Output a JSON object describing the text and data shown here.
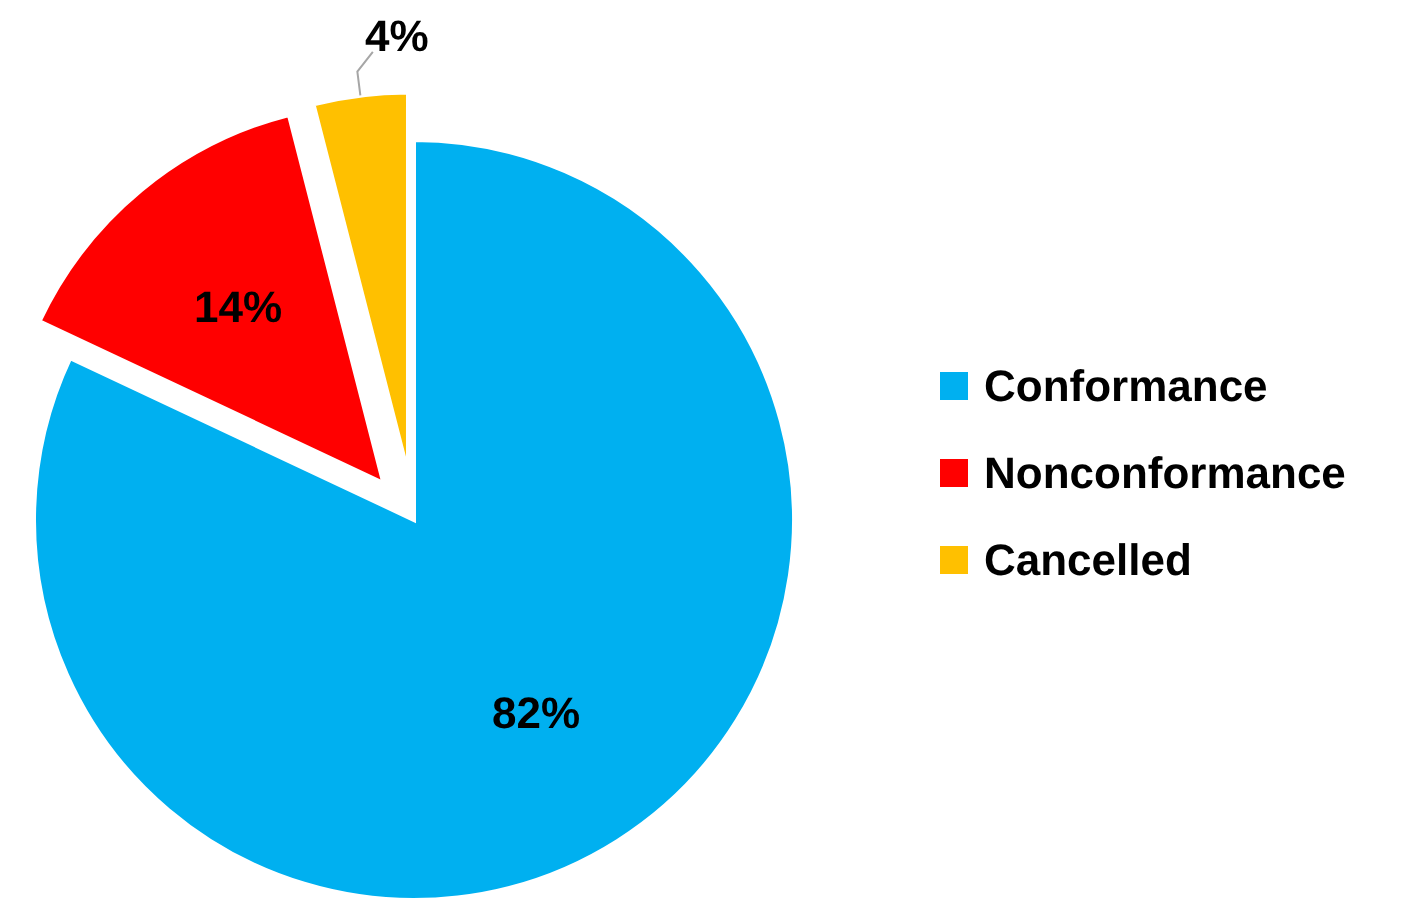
{
  "chart_data": {
    "type": "pie",
    "categories": [
      "Conformance",
      "Nonconformance",
      "Cancelled"
    ],
    "values": [
      82,
      14,
      4
    ],
    "colors": [
      "#00b0f0",
      "#ff0000",
      "#ffc000"
    ],
    "value_labels": [
      "82%",
      "14%",
      "4%"
    ],
    "legend": "right"
  }
}
